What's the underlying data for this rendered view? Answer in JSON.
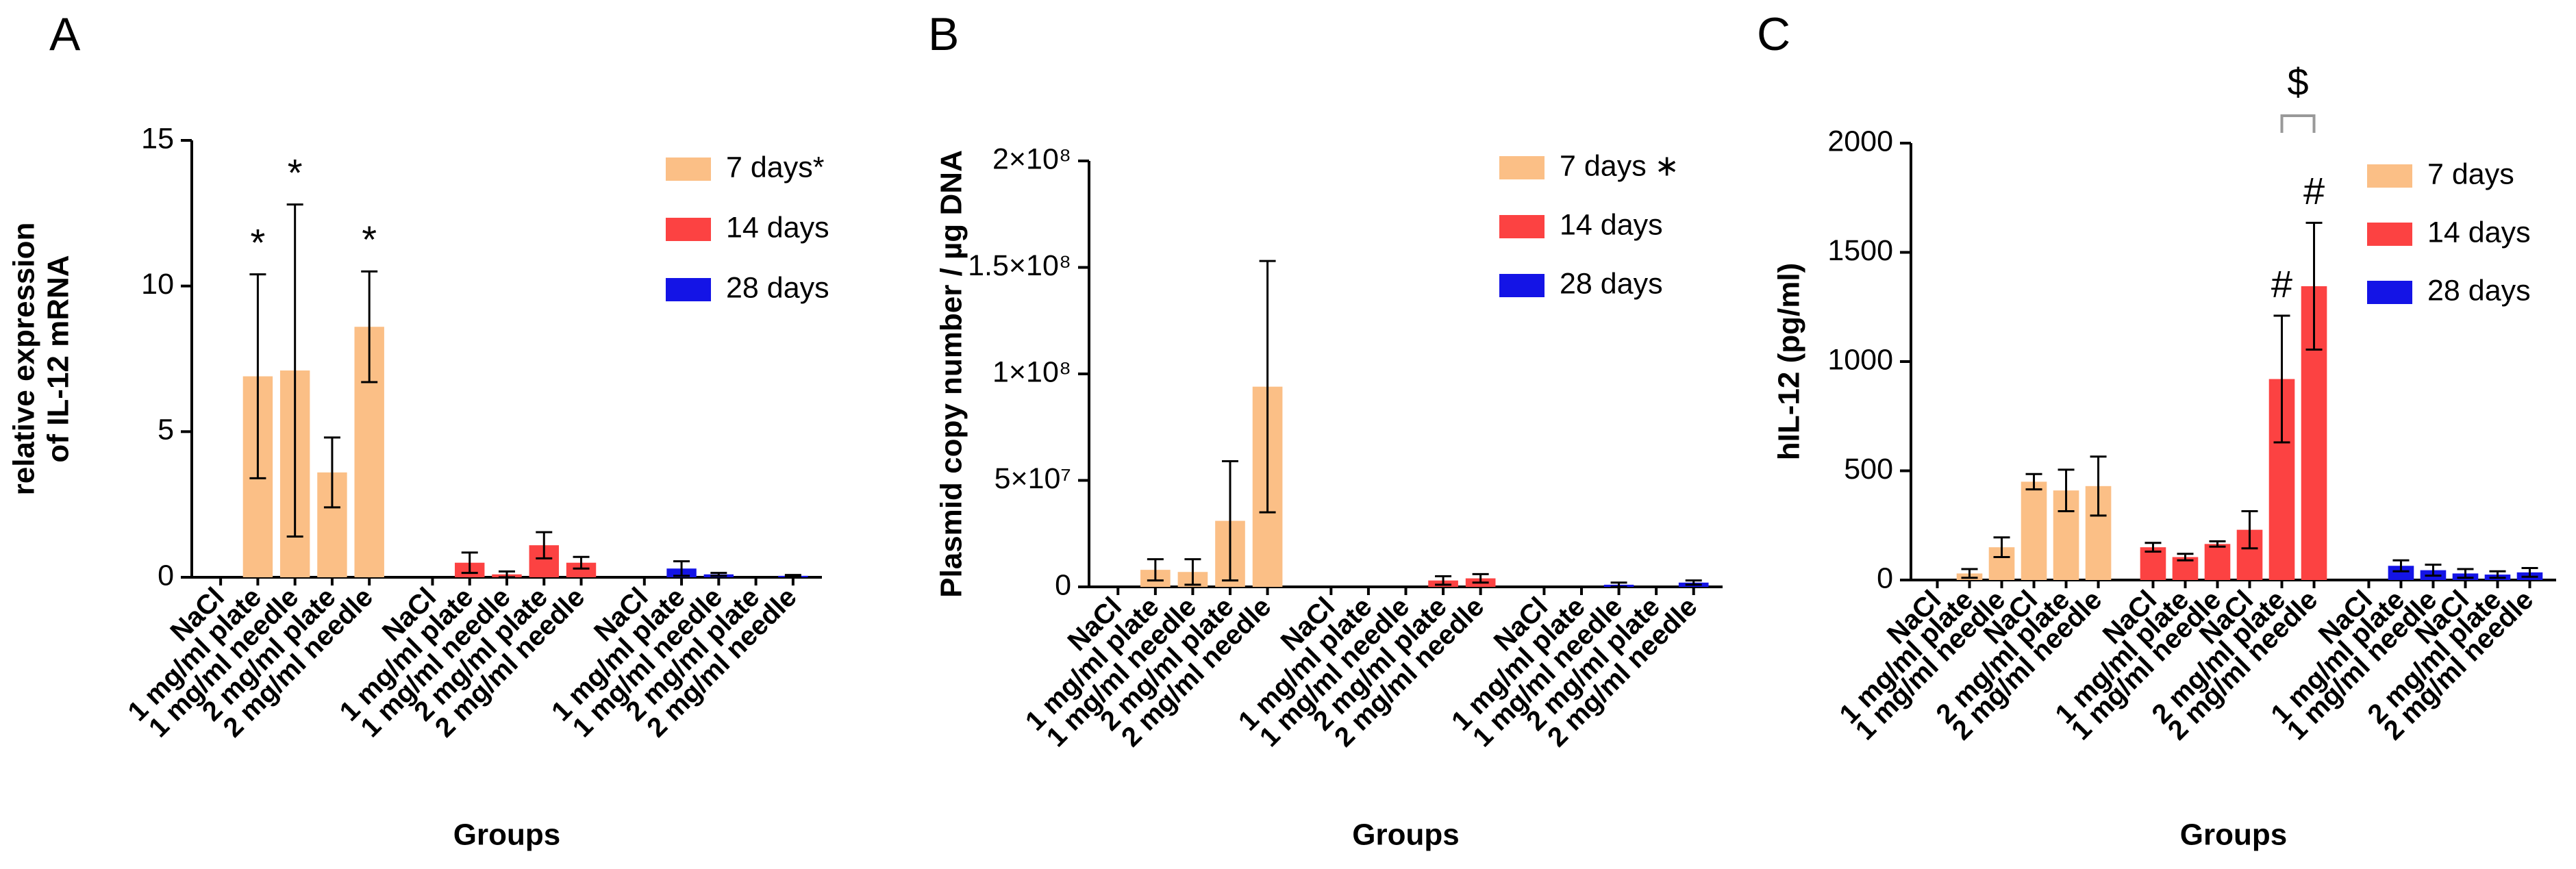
{
  "chart_data": [
    {
      "type": "bar",
      "panel": "A",
      "y_label": [
        "relative expression",
        "of IL-12 mRNA"
      ],
      "x_label": "Groups",
      "categories": [
        "NaCl",
        "1 mg/ml plate",
        "1 mg/ml needle",
        "2 mg/ml plate",
        "2 mg/ml needle",
        "NaCl",
        "1 mg/ml plate",
        "1 mg/ml needle",
        "2 mg/ml plate",
        "2 mg/ml needle",
        "NaCl",
        "1 mg/ml plate",
        "1 mg/ml needle",
        "2 mg/ml plate",
        "2 mg/ml needle"
      ],
      "series": [
        {
          "name": "7 days*",
          "color": "#fbbf86",
          "values": [
            0,
            6.9,
            7.1,
            3.6,
            8.6,
            null,
            null,
            null,
            null,
            null,
            null,
            null,
            null,
            null,
            null
          ],
          "errors": [
            0,
            3.5,
            5.7,
            1.2,
            1.9,
            null,
            null,
            null,
            null,
            null,
            null,
            null,
            null,
            null,
            null
          ]
        },
        {
          "name": "14 days",
          "color": "#fc4242",
          "values": [
            null,
            null,
            null,
            null,
            null,
            0,
            0.5,
            0.1,
            1.1,
            0.5,
            null,
            null,
            null,
            null,
            null
          ],
          "errors": [
            null,
            null,
            null,
            null,
            null,
            0,
            0.35,
            0.1,
            0.45,
            0.2,
            null,
            null,
            null,
            null,
            null
          ]
        },
        {
          "name": "28 days",
          "color": "#1414e6",
          "values": [
            null,
            null,
            null,
            null,
            null,
            null,
            null,
            null,
            null,
            null,
            0,
            0.3,
            0.1,
            0,
            0.05
          ],
          "errors": [
            null,
            null,
            null,
            null,
            null,
            null,
            null,
            null,
            null,
            null,
            0,
            0.25,
            0.05,
            0,
            0.03
          ]
        }
      ],
      "annotations": [
        "*",
        "*",
        "*"
      ],
      "ylim": [
        0,
        15
      ],
      "yticks": [
        0,
        5,
        10,
        15
      ]
    },
    {
      "type": "bar",
      "panel": "B",
      "y_label": [
        "Plasmid copy number / µg DNA"
      ],
      "x_label": "Groups",
      "categories": [
        "NaCl",
        "1 mg/ml plate",
        "1 mg/ml needle",
        "2 mg/ml plate",
        "2 mg/ml needle",
        "NaCl",
        "1 mg/ml plate",
        "1 mg/ml needle",
        "2 mg/ml plate",
        "2 mg/ml needle",
        "NaCl",
        "1 mg/ml plate",
        "1 mg/ml needle",
        "2 mg/ml plate",
        "2 mg/ml needle"
      ],
      "series": [
        {
          "name": "7 days ∗",
          "color": "#fbbf86",
          "values": [
            0,
            8000000,
            7000000,
            31000000,
            94000000,
            null,
            null,
            null,
            null,
            null,
            null,
            null,
            null,
            null,
            null
          ],
          "errors": [
            0,
            5000000,
            6000000,
            28000000,
            59000000,
            null,
            null,
            null,
            null,
            null,
            null,
            null,
            null,
            null,
            null
          ]
        },
        {
          "name": "14 days",
          "color": "#fc4242",
          "values": [
            null,
            null,
            null,
            null,
            null,
            0,
            0,
            0,
            3000000,
            4000000,
            null,
            null,
            null,
            null,
            null
          ],
          "errors": [
            null,
            null,
            null,
            null,
            null,
            0,
            0,
            0,
            2000000,
            2000000,
            null,
            null,
            null,
            null,
            null
          ]
        },
        {
          "name": "28 days",
          "color": "#1414e6",
          "values": [
            null,
            null,
            null,
            null,
            null,
            null,
            null,
            null,
            null,
            null,
            0,
            0,
            1000000,
            0,
            2000000
          ],
          "errors": [
            null,
            null,
            null,
            null,
            null,
            null,
            null,
            null,
            null,
            null,
            0,
            0,
            1000000,
            0,
            1000000
          ]
        }
      ],
      "ylim": [
        0,
        200000000
      ],
      "yticks": [
        0,
        {
          "value": 50000000,
          "label": "5×10⁷"
        },
        {
          "value": 100000000,
          "label": "1×10⁸"
        },
        {
          "value": 150000000,
          "label": "1.5×10⁸"
        },
        {
          "value": 200000000,
          "label": "2×10⁸"
        }
      ]
    },
    {
      "type": "bar",
      "panel": "C",
      "y_label": [
        "hIL-12 (pg/ml)"
      ],
      "x_label": "Groups",
      "categories": [
        "NaCl",
        "1 mg/ml plate",
        "1 mg/ml needle",
        "NaCl",
        "2 mg/ml plate",
        "2 mg/ml needle",
        "NaCl",
        "1 mg/ml plate",
        "1 mg/ml needle",
        "NaCl",
        "2 mg/ml plate",
        "2 mg/ml needle",
        "NaCl",
        "1 mg/ml plate",
        "1 mg/ml needle",
        "NaCl",
        "2 mg/ml plate",
        "2 mg/ml needle"
      ],
      "series": [
        {
          "name": "7 days",
          "color": "#fbbf86",
          "values": [
            0,
            30,
            150,
            450,
            410,
            430,
            null,
            null,
            null,
            null,
            null,
            null,
            null,
            null,
            null,
            null,
            null,
            null
          ],
          "errors": [
            0,
            20,
            45,
            35,
            95,
            135,
            null,
            null,
            null,
            null,
            null,
            null,
            null,
            null,
            null,
            null,
            null,
            null
          ]
        },
        {
          "name": "14 days",
          "color": "#fc4242",
          "values": [
            null,
            null,
            null,
            null,
            null,
            null,
            150,
            105,
            165,
            230,
            920,
            1345,
            null,
            null,
            null,
            null,
            null,
            null
          ],
          "errors": [
            null,
            null,
            null,
            null,
            null,
            null,
            20,
            15,
            12,
            85,
            290,
            290,
            null,
            null,
            null,
            null,
            null,
            null
          ]
        },
        {
          "name": "28 days",
          "color": "#1414e6",
          "values": [
            null,
            null,
            null,
            null,
            null,
            null,
            null,
            null,
            null,
            null,
            null,
            null,
            0,
            65,
            45,
            30,
            25,
            35
          ],
          "errors": [
            null,
            null,
            null,
            null,
            null,
            null,
            null,
            null,
            null,
            null,
            null,
            null,
            0,
            25,
            25,
            20,
            15,
            20
          ]
        }
      ],
      "annotations": [
        "$",
        "#",
        "#"
      ],
      "ylim": [
        0,
        2000
      ],
      "yticks": [
        0,
        500,
        1000,
        1500,
        2000
      ]
    }
  ]
}
